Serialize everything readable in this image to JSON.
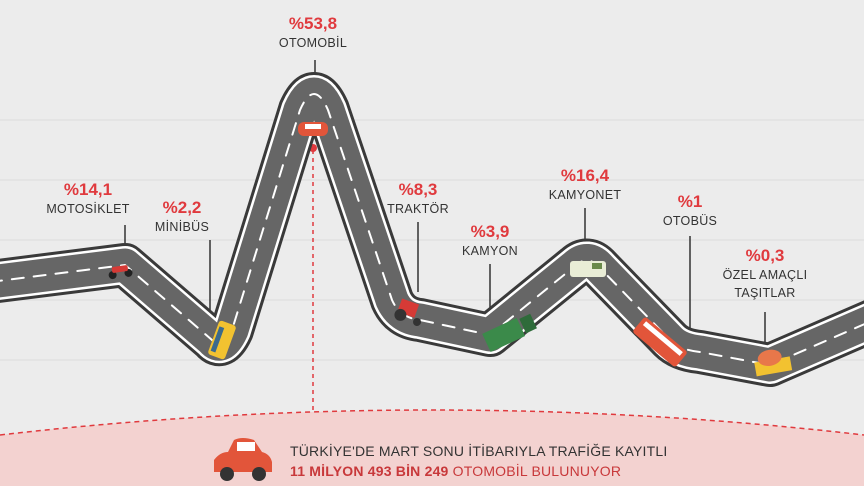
{
  "items": [
    {
      "label": "%14,1",
      "name": "MOTOSİKLET"
    },
    {
      "label": "%2,2",
      "name": "MİNİBÜS"
    },
    {
      "label": "%53,8",
      "name": "OTOMOBİL"
    },
    {
      "label": "%8,3",
      "name": "TRAKTÖR"
    },
    {
      "label": "%3,9",
      "name": "KAMYON"
    },
    {
      "label": "%16,4",
      "name": "KAMYONET"
    },
    {
      "label": "%1",
      "name": "OTOBÜS"
    },
    {
      "label": "%0,3",
      "name": "ÖZEL AMAÇLI TAŞITLAR"
    }
  ],
  "footer": {
    "line1": "TÜRKİYE'DE MART SONU İTİBARIYLA TRAFİĞE KAYITLI",
    "line2_bold": "11 MİLYON 493 BİN 249",
    "line2_rest": "OTOMOBİL BULUNUYOR"
  }
}
